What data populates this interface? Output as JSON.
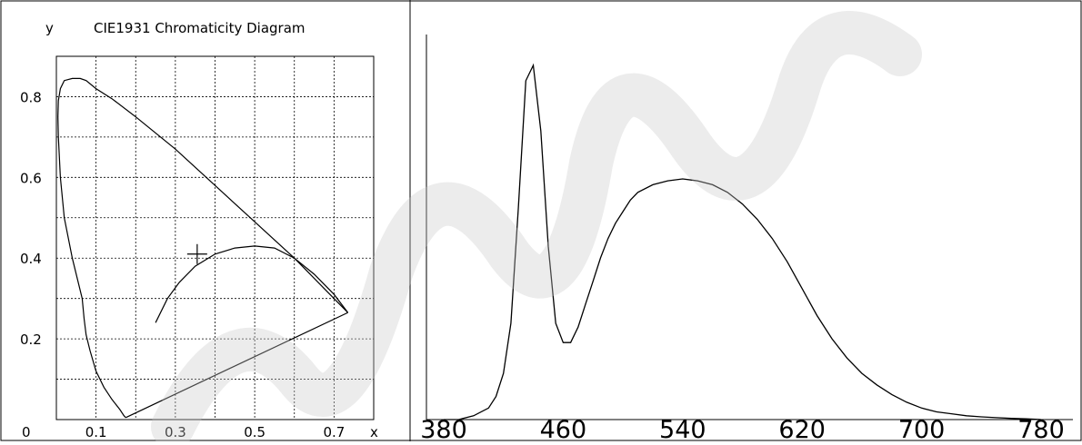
{
  "chart_data": [
    {
      "type": "line",
      "title": "CIE1931 Chromaticity Diagram",
      "xlabel": "x",
      "ylabel": "y",
      "origin_label": "0",
      "xlim": [
        0.0,
        0.8
      ],
      "ylim": [
        0.0,
        0.9
      ],
      "grid": true,
      "xticks": [
        "0.1",
        "0.3",
        "0.5",
        "0.7"
      ],
      "yticks": [
        "0.2",
        "0.4",
        "0.6",
        "0.8"
      ],
      "xtick_values": [
        0.1,
        0.3,
        0.5,
        0.7
      ],
      "ytick_values": [
        0.2,
        0.4,
        0.6,
        0.8
      ],
      "grid_x": [
        0.1,
        0.2,
        0.3,
        0.4,
        0.5,
        0.6,
        0.7
      ],
      "grid_y": [
        0.1,
        0.2,
        0.3,
        0.4,
        0.5,
        0.6,
        0.7,
        0.8
      ],
      "spectral_locus": {
        "x": [
          0.175,
          0.17,
          0.16,
          0.14,
          0.12,
          0.1,
          0.085,
          0.075,
          0.07,
          0.065,
          0.04,
          0.02,
          0.01,
          0.005,
          0.004,
          0.005,
          0.01,
          0.02,
          0.04,
          0.06,
          0.075,
          0.1,
          0.14,
          0.2,
          0.3,
          0.4,
          0.5,
          0.6,
          0.68,
          0.735
        ],
        "y": [
          0.005,
          0.01,
          0.025,
          0.05,
          0.08,
          0.12,
          0.17,
          0.21,
          0.25,
          0.3,
          0.4,
          0.5,
          0.6,
          0.7,
          0.75,
          0.79,
          0.82,
          0.84,
          0.845,
          0.845,
          0.84,
          0.82,
          0.795,
          0.75,
          0.67,
          0.58,
          0.49,
          0.4,
          0.32,
          0.265
        ]
      },
      "purple_line": {
        "x": [
          0.735,
          0.175
        ],
        "y": [
          0.265,
          0.005
        ]
      },
      "planckian_locus": {
        "x": [
          0.25,
          0.28,
          0.31,
          0.35,
          0.4,
          0.45,
          0.5,
          0.55,
          0.6,
          0.65,
          0.7,
          0.735
        ],
        "y": [
          0.24,
          0.3,
          0.34,
          0.38,
          0.41,
          0.425,
          0.43,
          0.425,
          0.4,
          0.36,
          0.31,
          0.265
        ]
      },
      "marker": {
        "x": 0.355,
        "y": 0.41
      }
    },
    {
      "type": "line",
      "title": "",
      "xlabel": "",
      "ylabel": "",
      "xlim": [
        380,
        780
      ],
      "ylim": [
        0,
        1
      ],
      "grid": false,
      "xticks": [
        "380",
        "460",
        "540",
        "620",
        "700",
        "780"
      ],
      "xtick_values": [
        380,
        460,
        540,
        620,
        700,
        780
      ],
      "series": [
        {
          "x": [
            380,
            390,
            400,
            410,
            415,
            420,
            425,
            430,
            435,
            440,
            445,
            450,
            455,
            460,
            465,
            470,
            475,
            480,
            485,
            490,
            495,
            500,
            505,
            510,
            520,
            530,
            540,
            550,
            560,
            570,
            580,
            590,
            600,
            610,
            620,
            630,
            640,
            650,
            660,
            670,
            680,
            690,
            700,
            710,
            720,
            730,
            740,
            750,
            760,
            770,
            780
          ],
          "y": [
            0.0,
            0.0,
            0.01,
            0.03,
            0.06,
            0.12,
            0.25,
            0.55,
            0.88,
            0.92,
            0.75,
            0.45,
            0.25,
            0.2,
            0.2,
            0.24,
            0.3,
            0.36,
            0.42,
            0.47,
            0.51,
            0.54,
            0.57,
            0.59,
            0.61,
            0.62,
            0.625,
            0.62,
            0.61,
            0.59,
            0.56,
            0.52,
            0.47,
            0.41,
            0.34,
            0.27,
            0.21,
            0.16,
            0.12,
            0.09,
            0.065,
            0.045,
            0.03,
            0.02,
            0.015,
            0.01,
            0.007,
            0.005,
            0.003,
            0.002,
            0.0
          ]
        }
      ]
    }
  ]
}
